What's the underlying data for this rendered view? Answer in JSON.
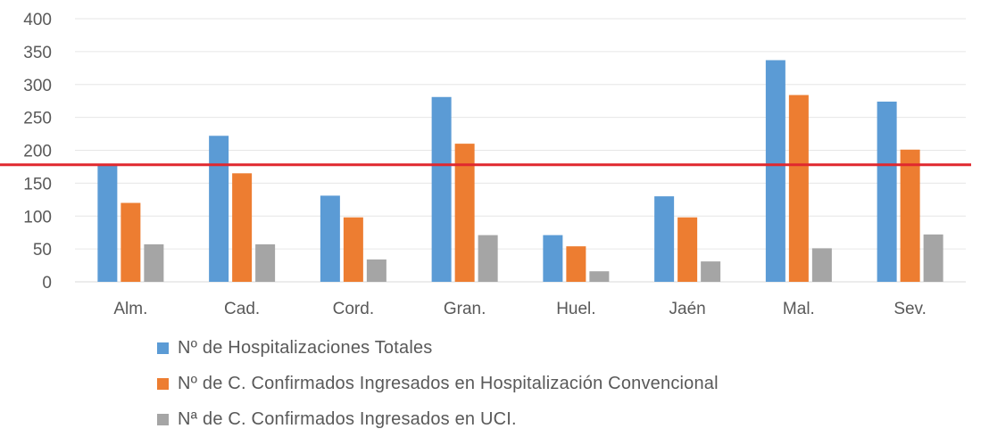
{
  "chart_data": {
    "type": "bar",
    "title": "",
    "xlabel": "",
    "ylabel": "",
    "categories": [
      "Alm.",
      "Cad.",
      "Cord.",
      "Gran.",
      "Huel.",
      "Jaén",
      "Mal.",
      "Sev."
    ],
    "series": [
      {
        "name": "Nº de Hospitalizaciones Totales",
        "color": "#5B9BD5",
        "values": [
          178,
          222,
          131,
          281,
          71,
          130,
          337,
          274
        ]
      },
      {
        "name": "Nº de C. Confirmados Ingresados en Hospitalización Convencional",
        "color": "#ED7D31",
        "values": [
          120,
          165,
          98,
          210,
          54,
          98,
          284,
          201
        ]
      },
      {
        "name": "Nª de C. Confirmados Ingresados en UCI.",
        "color": "#A5A5A5",
        "values": [
          57,
          57,
          34,
          71,
          16,
          31,
          51,
          72
        ]
      }
    ],
    "ylim": [
      0,
      400
    ],
    "yticks": [
      0,
      50,
      100,
      150,
      200,
      250,
      300,
      350,
      400
    ],
    "reference_line": {
      "value": 178,
      "color": "#E0282E"
    },
    "grid": true,
    "legend_position": "bottom"
  }
}
